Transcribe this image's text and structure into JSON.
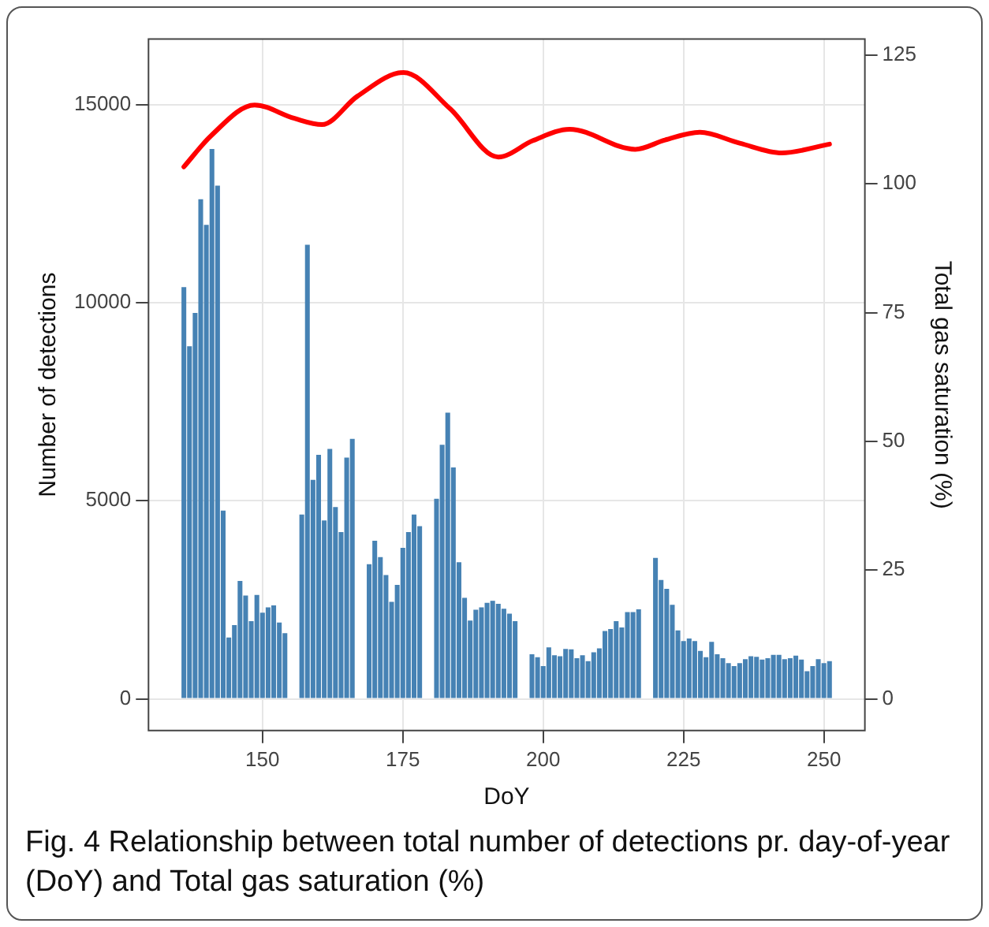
{
  "chart_data": {
    "type": "bar",
    "xlabel": "DoY",
    "ylabel": "Number of detections",
    "y2label": "Total gas saturation (%)",
    "xlim": [
      129.7,
      257.3
    ],
    "xticks": [
      150,
      175,
      200,
      225,
      250
    ],
    "ylim": [
      -800,
      16650
    ],
    "yticks": [
      0,
      5000,
      10000,
      15000
    ],
    "y2lim": [
      -6.15,
      128.1
    ],
    "y2ticks": [
      0,
      25,
      50,
      75,
      100,
      125
    ],
    "grid": true,
    "legend": false,
    "marker": "none",
    "line_style": "solid",
    "annotations": [
      "Fig. 4  Relationship between total number of detections pr. day-of-year (DoY) and Total gas saturation (%)"
    ],
    "series": [
      {
        "color": "#4682b4",
        "x": [
          136,
          137,
          138,
          139,
          140,
          141,
          142,
          143,
          144,
          145,
          146,
          147,
          148,
          149,
          150,
          151,
          152,
          153,
          154,
          157,
          158,
          159,
          160,
          161,
          162,
          163,
          164,
          165,
          166,
          169,
          170,
          171,
          172,
          173,
          174,
          175,
          176,
          177,
          178,
          181,
          182,
          183,
          184,
          185,
          186,
          187,
          188,
          189,
          190,
          191,
          192,
          193,
          194,
          195,
          198,
          199,
          200,
          201,
          202,
          203,
          204,
          205,
          206,
          207,
          208,
          209,
          210,
          211,
          212,
          213,
          214,
          215,
          216,
          217,
          220,
          221,
          222,
          223,
          224,
          225,
          226,
          227,
          228,
          229,
          230,
          231,
          232,
          233,
          234,
          235,
          236,
          237,
          238,
          239,
          240,
          241,
          242,
          243,
          244,
          245,
          246,
          247,
          248,
          249,
          250,
          251
        ],
        "values": [
          10390,
          8900,
          9740,
          12610,
          11960,
          13875,
          12950,
          4750,
          1550,
          1860,
          2975,
          2610,
          1960,
          2625,
          2175,
          2310,
          2360,
          1925,
          1660,
          4650,
          11460,
          5525,
          6160,
          4500,
          6310,
          4840,
          4210,
          6090,
          6560,
          3400,
          3990,
          3575,
          3125,
          2450,
          2875,
          3810,
          4210,
          4650,
          4360,
          5050,
          6410,
          7225,
          5840,
          3450,
          2550,
          1975,
          2250,
          2310,
          2425,
          2475,
          2400,
          2275,
          2150,
          1960,
          1125,
          1050,
          825,
          1300,
          1100,
          1075,
          1260,
          1250,
          1025,
          1100,
          950,
          1175,
          1275,
          1710,
          1760,
          1960,
          1800,
          2190,
          2190,
          2260,
          3560,
          3000,
          2775,
          2375,
          1725,
          1460,
          1525,
          1460,
          1210,
          1050,
          1440,
          1125,
          1025,
          900,
          825,
          900,
          1000,
          1075,
          1060,
          990,
          1025,
          1110,
          1110,
          1000,
          1025,
          1090,
          990,
          700,
          825,
          1000,
          900,
          950
        ]
      },
      {
        "type": "line",
        "axis": "y2",
        "color": "#ff0000",
        "x": [
          136,
          140.8,
          148.6,
          155.7,
          160.6,
          166.9,
          175.1,
          183.4,
          192,
          198.2,
          204.7,
          216.4,
          221.7,
          227.9,
          235,
          242.5,
          251
        ],
        "values": [
          103.3,
          109.3,
          115.3,
          112.7,
          111.5,
          117,
          121.6,
          114.6,
          105.2,
          108.4,
          110.6,
          106.7,
          108.5,
          110,
          107.9,
          106,
          107.7
        ]
      }
    ]
  }
}
